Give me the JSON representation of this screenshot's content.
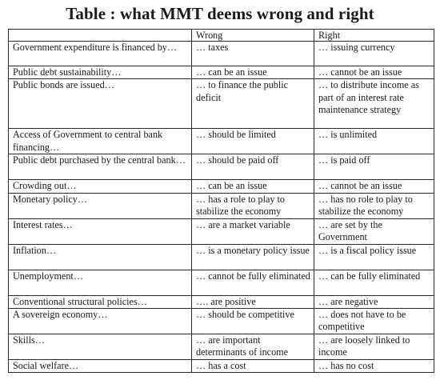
{
  "title": "Table : what MMT deems wrong and right",
  "table": {
    "headers": [
      "",
      "Wrong",
      "Right"
    ],
    "rows": [
      [
        "Government expenditure is financed by…",
        "… taxes",
        "… issuing currency"
      ],
      [
        "Public debt sustainability…",
        "… can be an issue",
        "… cannot be an issue"
      ],
      [
        "Public bonds are issued…",
        "… to finance the public deficit",
        "… to distribute income as part of an interest rate maintenance strategy"
      ],
      [
        "Access of Government to central bank financing…",
        "… should be limited",
        "… is unlimited"
      ],
      [
        "Public debt purchased by the central bank…",
        "… should be paid off",
        "… is paid off"
      ],
      [
        "Crowding out…",
        "… can be an issue",
        "… cannot be an issue"
      ],
      [
        "Monetary policy…",
        "… has a role to play to stabilize the economy",
        "… has no role to play to stabilize the economy"
      ],
      [
        "Interest rates…",
        "… are a market variable",
        "… are set by the Government"
      ],
      [
        "Inflation…",
        "… is a monetary policy issue",
        "… is a fiscal policy issue"
      ],
      [
        "Unemployment…",
        "… cannot be fully eliminated",
        "… can be fully eliminated"
      ],
      [
        "Conventional structural policies…",
        "…. are positive",
        "… are negative"
      ],
      [
        "A sovereign economy…",
        "… should be competitive",
        "… does not have to be competitive"
      ],
      [
        "Skills…",
        "… are important determinants of income",
        "… are loosely linked to income"
      ],
      [
        "Social welfare…",
        "… has a cost",
        "… has no cost"
      ]
    ]
  }
}
